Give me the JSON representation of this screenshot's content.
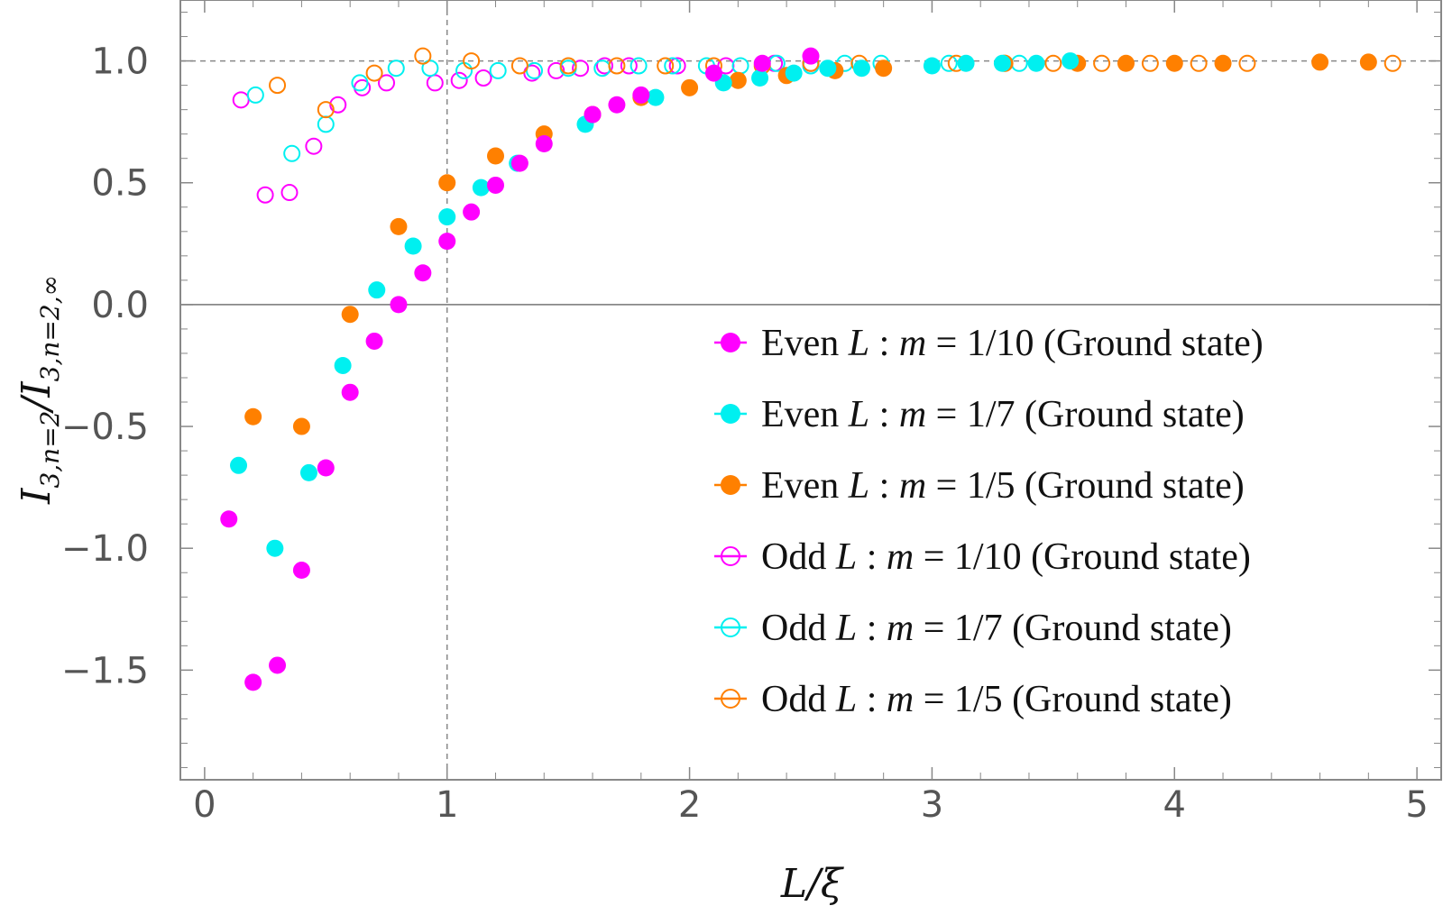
{
  "chart_data": {
    "type": "scatter",
    "xlabel": "L/ξ",
    "ylabel_main": "I",
    "ylabel_sub_num": "3,n=2",
    "ylabel_sep": "/I",
    "ylabel_sub_den": "3,n=2,∞",
    "xlim": [
      -0.1,
      5.1
    ],
    "ylim": [
      -1.95,
      1.25
    ],
    "xticks": [
      0,
      1,
      2,
      3,
      4,
      5
    ],
    "xtick_labels": [
      "0",
      "1",
      "2",
      "3",
      "4",
      "5"
    ],
    "yticks": [
      -1.5,
      -1.0,
      -0.5,
      0.0,
      0.5,
      1.0
    ],
    "ytick_labels": [
      "−1.5",
      "−1.0",
      "−0.5",
      "0.0",
      "0.5",
      "1.0"
    ],
    "reference_lines": {
      "horizontal_dashed": 1.0,
      "vertical_dashed": 1.0,
      "horizontal_solid": 0.0
    },
    "legend_position": "lower-right",
    "series": [
      {
        "name": "Even L :  m = 1/10 (Ground state)",
        "color": "#ff00ff",
        "filled": true,
        "points": [
          [
            0.1,
            -0.88
          ],
          [
            0.2,
            -1.55
          ],
          [
            0.3,
            -1.48
          ],
          [
            0.4,
            -1.09
          ],
          [
            0.5,
            -0.67
          ],
          [
            0.6,
            -0.36
          ],
          [
            0.7,
            -0.15
          ],
          [
            0.8,
            0.0
          ],
          [
            0.9,
            0.13
          ],
          [
            1.0,
            0.26
          ],
          [
            1.1,
            0.38
          ],
          [
            1.2,
            0.49
          ],
          [
            1.3,
            0.58
          ],
          [
            1.4,
            0.66
          ],
          [
            1.6,
            0.78
          ],
          [
            1.7,
            0.82
          ],
          [
            1.8,
            0.86
          ],
          [
            2.1,
            0.95
          ],
          [
            2.3,
            0.99
          ],
          [
            2.5,
            1.02
          ]
        ]
      },
      {
        "name": "Even L :  m = 1/7 (Ground state)",
        "color": "#00f0f0",
        "filled": true,
        "points": [
          [
            0.14,
            -0.66
          ],
          [
            0.29,
            -1.0
          ],
          [
            0.43,
            -0.69
          ],
          [
            0.57,
            -0.25
          ],
          [
            0.71,
            0.06
          ],
          [
            0.86,
            0.24
          ],
          [
            1.0,
            0.36
          ],
          [
            1.14,
            0.48
          ],
          [
            1.29,
            0.58
          ],
          [
            1.57,
            0.74
          ],
          [
            1.86,
            0.85
          ],
          [
            2.14,
            0.91
          ],
          [
            2.29,
            0.93
          ],
          [
            2.43,
            0.95
          ],
          [
            2.57,
            0.97
          ],
          [
            2.71,
            0.97
          ],
          [
            3.0,
            0.98
          ],
          [
            3.14,
            0.99
          ],
          [
            3.29,
            0.99
          ],
          [
            3.43,
            0.99
          ],
          [
            3.57,
            1.0
          ]
        ]
      },
      {
        "name": "Even L :  m = 1/5 (Ground state)",
        "color": "#ff8000",
        "filled": true,
        "points": [
          [
            0.2,
            -0.46
          ],
          [
            0.4,
            -0.5
          ],
          [
            0.6,
            -0.04
          ],
          [
            0.8,
            0.32
          ],
          [
            1.0,
            0.5
          ],
          [
            1.2,
            0.61
          ],
          [
            1.4,
            0.7
          ],
          [
            1.6,
            0.78
          ],
          [
            1.8,
            0.85
          ],
          [
            2.0,
            0.89
          ],
          [
            2.2,
            0.92
          ],
          [
            2.4,
            0.94
          ],
          [
            2.6,
            0.96
          ],
          [
            2.8,
            0.97
          ],
          [
            3.3,
            0.99
          ],
          [
            3.6,
            0.99
          ],
          [
            3.8,
            0.99
          ],
          [
            4.0,
            0.99
          ],
          [
            4.2,
            0.99
          ],
          [
            4.6,
            0.995
          ],
          [
            4.8,
            0.995
          ]
        ]
      },
      {
        "name": "Odd L :  m = 1/10 (Ground state)",
        "color": "#ff00ff",
        "filled": false,
        "points": [
          [
            0.15,
            0.84
          ],
          [
            0.25,
            0.45
          ],
          [
            0.35,
            0.46
          ],
          [
            0.45,
            0.65
          ],
          [
            0.55,
            0.82
          ],
          [
            0.65,
            0.89
          ],
          [
            0.75,
            0.91
          ],
          [
            0.95,
            0.91
          ],
          [
            1.05,
            0.92
          ],
          [
            1.15,
            0.93
          ],
          [
            1.35,
            0.95
          ],
          [
            1.45,
            0.96
          ],
          [
            1.55,
            0.97
          ],
          [
            1.65,
            0.98
          ],
          [
            1.75,
            0.98
          ],
          [
            1.95,
            0.98
          ],
          [
            2.15,
            0.98
          ],
          [
            2.35,
            0.99
          ],
          [
            2.5,
            0.99
          ]
        ]
      },
      {
        "name": "Odd L :  m = 1/7 (Ground state)",
        "color": "#00f0f0",
        "filled": false,
        "points": [
          [
            0.21,
            0.86
          ],
          [
            0.36,
            0.62
          ],
          [
            0.5,
            0.74
          ],
          [
            0.64,
            0.91
          ],
          [
            0.79,
            0.97
          ],
          [
            0.93,
            0.97
          ],
          [
            1.07,
            0.96
          ],
          [
            1.21,
            0.96
          ],
          [
            1.36,
            0.96
          ],
          [
            1.5,
            0.97
          ],
          [
            1.64,
            0.97
          ],
          [
            1.79,
            0.98
          ],
          [
            1.93,
            0.98
          ],
          [
            2.07,
            0.98
          ],
          [
            2.21,
            0.98
          ],
          [
            2.36,
            0.99
          ],
          [
            2.5,
            0.98
          ],
          [
            2.64,
            0.99
          ],
          [
            2.79,
            0.99
          ],
          [
            3.07,
            0.99
          ],
          [
            3.36,
            0.99
          ]
        ]
      },
      {
        "name": "Odd L :  m = 1/5 (Ground state)",
        "color": "#ff8000",
        "filled": false,
        "points": [
          [
            0.3,
            0.9
          ],
          [
            0.5,
            0.8
          ],
          [
            0.7,
            0.95
          ],
          [
            0.9,
            1.02
          ],
          [
            1.1,
            1.0
          ],
          [
            1.3,
            0.98
          ],
          [
            1.5,
            0.98
          ],
          [
            1.7,
            0.98
          ],
          [
            1.9,
            0.98
          ],
          [
            2.1,
            0.98
          ],
          [
            2.3,
            0.98
          ],
          [
            2.5,
            0.99
          ],
          [
            2.7,
            0.99
          ],
          [
            3.1,
            0.99
          ],
          [
            3.3,
            0.99
          ],
          [
            3.5,
            0.99
          ],
          [
            3.7,
            0.99
          ],
          [
            3.9,
            0.99
          ],
          [
            4.1,
            0.99
          ],
          [
            4.3,
            0.99
          ],
          [
            4.9,
            0.99
          ]
        ]
      }
    ],
    "legend": [
      {
        "prefix": "Even",
        "var": "L",
        "mid": " :  ",
        "mvar": "m",
        "rest": " = 1/10 (Ground state)",
        "color": "#ff00ff",
        "filled": true
      },
      {
        "prefix": "Even",
        "var": "L",
        "mid": " :  ",
        "mvar": "m",
        "rest": " = 1/7 (Ground state)",
        "color": "#00f0f0",
        "filled": true
      },
      {
        "prefix": "Even",
        "var": "L",
        "mid": " :  ",
        "mvar": "m",
        "rest": " = 1/5 (Ground state)",
        "color": "#ff8000",
        "filled": true
      },
      {
        "prefix": "Odd",
        "var": "L",
        "mid": " :  ",
        "mvar": "m",
        "rest": " = 1/10 (Ground state)",
        "color": "#ff00ff",
        "filled": false
      },
      {
        "prefix": "Odd",
        "var": "L",
        "mid": " :  ",
        "mvar": "m",
        "rest": " = 1/7 (Ground state)",
        "color": "#00f0f0",
        "filled": false
      },
      {
        "prefix": "Odd",
        "var": "L",
        "mid": " :  ",
        "mvar": "m",
        "rest": " = 1/5 (Ground state)",
        "color": "#ff8000",
        "filled": false
      }
    ]
  }
}
